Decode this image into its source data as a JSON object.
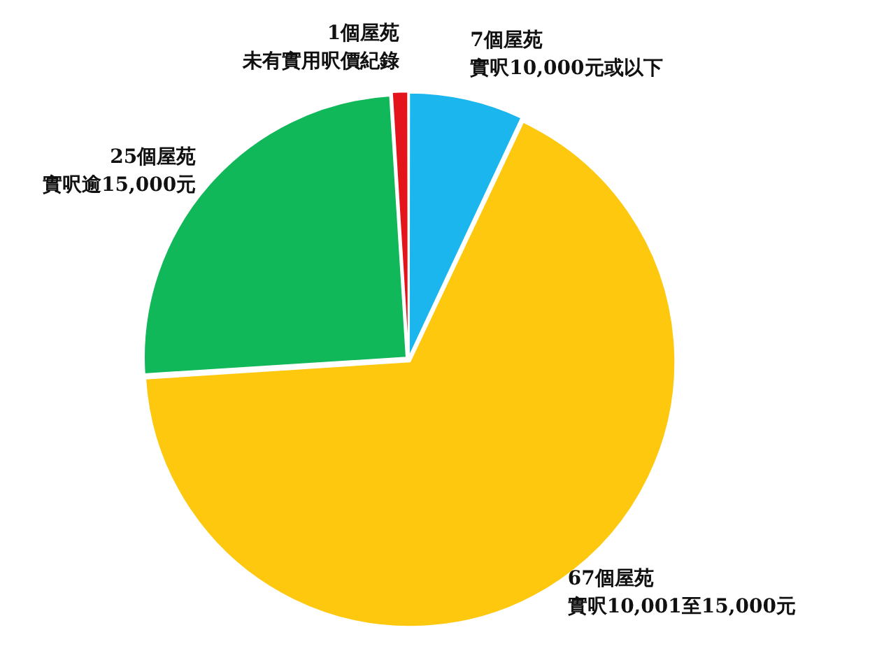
{
  "chart_data": {
    "type": "pie",
    "categories": [
      "實呎10,000元或以下",
      "實呎10,001至15,000元",
      "實呎逾15,000元",
      "未有實用呎價紀錄"
    ],
    "values": [
      7,
      67,
      25,
      1
    ],
    "value_labels": [
      "7個屋苑",
      "67個屋苑",
      "25個屋苑",
      "1個屋苑"
    ],
    "colors": [
      "#1cb6ee",
      "#fdc80e",
      "#10b85a",
      "#e3141c"
    ]
  }
}
